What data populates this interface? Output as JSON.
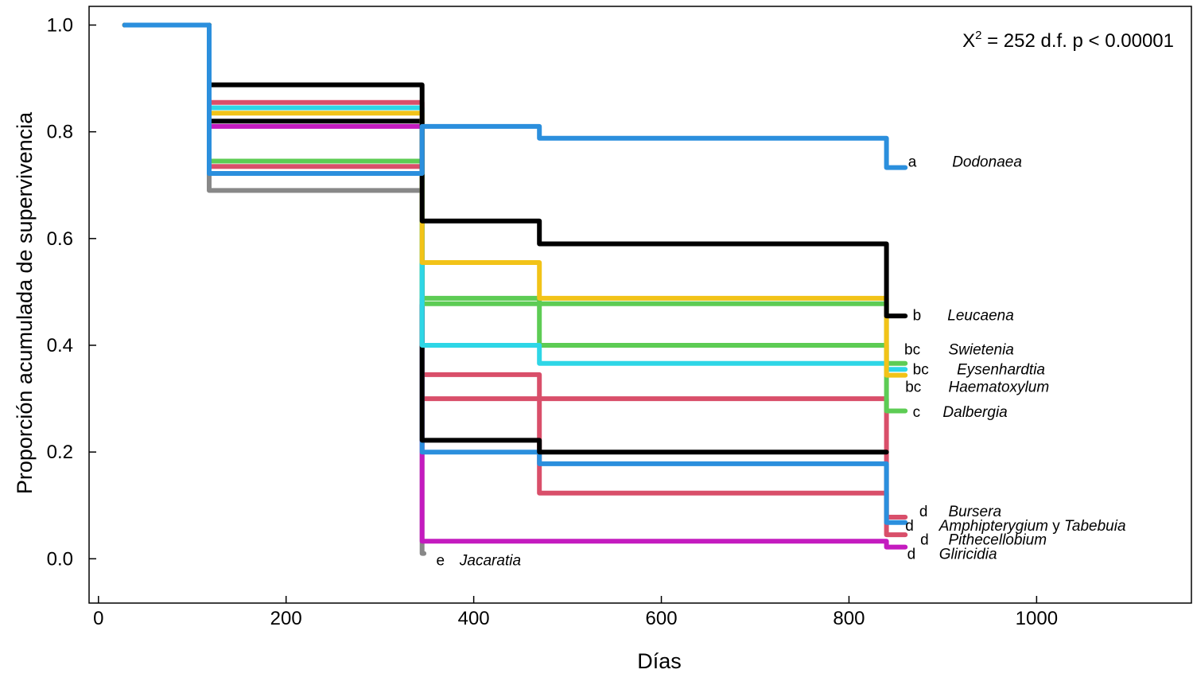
{
  "chart_data": {
    "type": "line",
    "step": true,
    "title": "",
    "xlabel": "Días",
    "ylabel": "Proporción  acumulada de supervivencia",
    "xlim": [
      -10,
      1165
    ],
    "ylim": [
      -0.083,
      1.035
    ],
    "xticks": [
      0,
      200,
      400,
      600,
      800,
      1000
    ],
    "xtick_labels": [
      "0",
      "200",
      "400",
      "600",
      "800",
      "1000"
    ],
    "yticks": [
      0.0,
      0.2,
      0.4,
      0.6,
      0.8,
      1.0
    ],
    "ytick_labels": [
      "0.0",
      "0.2",
      "0.4",
      "0.6",
      "0.8",
      "1.0"
    ],
    "grid": false,
    "annotation": {
      "chi_prefix": "X",
      "chi_sup": "2",
      "chi_rest": " = 252  d.f.  p < 0.00001"
    },
    "series": [
      {
        "color": "#888888",
        "x": [
          28,
          118,
          345,
          347
        ],
        "y": [
          1.0,
          0.69,
          0.01,
          0.01
        ]
      },
      {
        "color": "#c41bbf",
        "x": [
          28,
          118,
          345,
          840,
          860
        ],
        "y": [
          1.0,
          0.81,
          0.033,
          0.022,
          0.022
        ]
      },
      {
        "color": "#d94f6a",
        "x": [
          28,
          118,
          345,
          470,
          840,
          860
        ],
        "y": [
          1.0,
          0.855,
          0.3,
          0.3,
          0.045,
          0.045
        ]
      },
      {
        "color": "#d94f6a",
        "x": [
          28,
          118,
          345,
          470,
          840,
          860
        ],
        "y": [
          1.0,
          0.735,
          0.345,
          0.123,
          0.078,
          0.078
        ]
      },
      {
        "color": "#2b8fdd",
        "x": [
          28,
          118,
          345,
          470,
          840,
          860
        ],
        "y": [
          1.0,
          0.722,
          0.2,
          0.178,
          0.068,
          0.068
        ]
      },
      {
        "color": "#000000",
        "x": [
          28,
          118,
          345,
          470,
          840
        ],
        "y": [
          1.0,
          0.82,
          0.222,
          0.2,
          0.2
        ]
      },
      {
        "color": "#5dcc54",
        "x": [
          28,
          118,
          345,
          470,
          840,
          860
        ],
        "y": [
          1.0,
          0.745,
          0.478,
          0.478,
          0.277,
          0.277
        ]
      },
      {
        "color": "#5dcc54",
        "x": [
          28,
          118,
          345,
          470,
          840,
          860
        ],
        "y": [
          1.0,
          0.745,
          0.488,
          0.4,
          0.366,
          0.366
        ]
      },
      {
        "color": "#2ed6e6",
        "x": [
          28,
          118,
          345,
          470,
          840,
          860
        ],
        "y": [
          1.0,
          0.845,
          0.4,
          0.366,
          0.355,
          0.355
        ]
      },
      {
        "color": "#f2c318",
        "x": [
          28,
          118,
          345,
          470,
          840,
          860
        ],
        "y": [
          1.0,
          0.835,
          0.555,
          0.488,
          0.344,
          0.344
        ]
      },
      {
        "color": "#000000",
        "x": [
          28,
          118,
          345,
          470,
          840,
          860
        ],
        "y": [
          1.0,
          0.888,
          0.633,
          0.59,
          0.455,
          0.455
        ]
      },
      {
        "color": "#2b8fdd",
        "x": [
          28,
          118,
          345,
          470,
          840,
          860
        ],
        "y": [
          1.0,
          0.722,
          0.81,
          0.788,
          0.733,
          0.733
        ]
      }
    ],
    "labels": [
      {
        "group": "a",
        "species": "Dodonaea",
        "y": 0.745,
        "gx": 863,
        "sx": 910
      },
      {
        "group": "b",
        "species": "Leucaena",
        "y": 0.457,
        "gx": 868,
        "sx": 905
      },
      {
        "group": "bc",
        "species": "Swietenia",
        "y": 0.393,
        "gx": 859,
        "sx": 906
      },
      {
        "group": "bc",
        "species": "Eysenhardtia",
        "y": 0.356,
        "gx": 868,
        "sx": 915
      },
      {
        "group": "bc",
        "species": "Haematoxylum",
        "y": 0.323,
        "gx": 860,
        "sx": 906
      },
      {
        "group": "c",
        "species": "Dalbergia",
        "y": 0.276,
        "gx": 868,
        "sx": 900
      },
      {
        "group": "d",
        "species": "Bursera",
        "y": 0.09,
        "gx": 875,
        "sx": 906
      },
      {
        "group": "d",
        "species": "Amphipterygium",
        "join": " y ",
        "species2": "Tabebuia",
        "y": 0.063,
        "gx": 860,
        "sx": 896
      },
      {
        "group": "d",
        "species": "Pithecellobium",
        "y": 0.037,
        "gx": 876,
        "sx": 906
      },
      {
        "group": "d",
        "species": "Gliricidia",
        "y": 0.01,
        "gx": 862,
        "sx": 896
      },
      {
        "group": "e",
        "species": "Jacaratia",
        "y": -0.002,
        "gx": 360,
        "sx": 385
      }
    ]
  }
}
